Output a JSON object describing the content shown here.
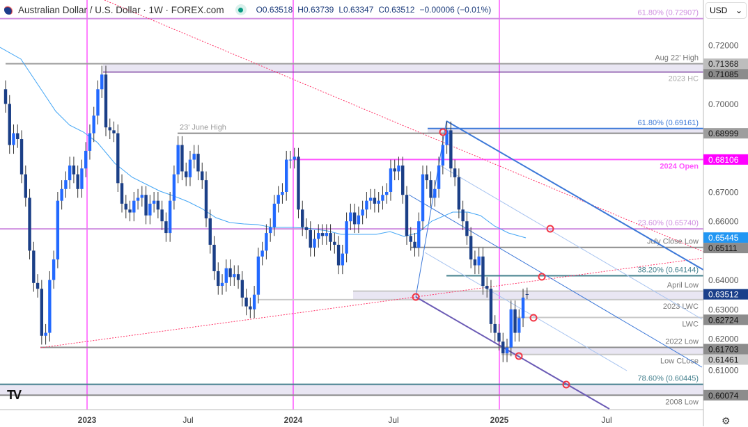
{
  "header": {
    "title": "Australian Dollar / U.S. Dollar · 1W · FOREX.com",
    "open": "O0.63518",
    "high": "H0.63739",
    "low": "L0.63347",
    "close": "C0.63512",
    "change": "−0.00006 (−0.01%)",
    "status_color": "#089981"
  },
  "currency_select": {
    "value": "USD"
  },
  "colors": {
    "up": "#2269ff",
    "down": "#1b3f87",
    "ma": "#42a5f5",
    "magenta": "#ff00ff",
    "fib": "#cf8fe0",
    "teal": "#45818e",
    "channel": "#3c78d8",
    "marker": "#f23645"
  },
  "chart_data": {
    "type": "candlestick",
    "timeframe": "1W",
    "symbol": "AUD/USD",
    "ylim": [
      0.596,
      0.735
    ],
    "x_ticks": [
      "2023",
      "Jul",
      "2024",
      "Jul",
      "2025",
      "Jul"
    ],
    "y_ticks": [
      "0.72000",
      "0.70000",
      "0.67000",
      "0.66000",
      "0.64000",
      "0.63000",
      "0.62000",
      "0.61000"
    ],
    "closes": [
      0.7,
      0.686,
      0.69,
      0.688,
      0.676,
      0.668,
      0.65,
      0.639,
      0.637,
      0.621,
      0.622,
      0.64,
      0.647,
      0.667,
      0.671,
      0.674,
      0.679,
      0.676,
      0.671,
      0.678,
      0.684,
      0.69,
      0.696,
      0.705,
      0.71,
      0.692,
      0.691,
      0.69,
      0.673,
      0.666,
      0.664,
      0.663,
      0.667,
      0.668,
      0.669,
      0.662,
      0.666,
      0.667,
      0.664,
      0.66,
      0.656,
      0.667,
      0.676,
      0.686,
      0.677,
      0.675,
      0.681,
      0.683,
      0.677,
      0.674,
      0.661,
      0.652,
      0.643,
      0.638,
      0.639,
      0.644,
      0.641,
      0.642,
      0.64,
      0.634,
      0.631,
      0.63,
      0.635,
      0.648,
      0.65,
      0.656,
      0.658,
      0.666,
      0.669,
      0.67,
      0.681,
      0.681,
      0.682,
      0.664,
      0.658,
      0.657,
      0.651,
      0.654,
      0.656,
      0.655,
      0.656,
      0.653,
      0.652,
      0.645,
      0.649,
      0.66,
      0.663,
      0.659,
      0.662,
      0.664,
      0.667,
      0.668,
      0.666,
      0.667,
      0.669,
      0.67,
      0.678,
      0.677,
      0.679,
      0.669,
      0.655,
      0.653,
      0.651,
      0.66,
      0.676,
      0.674,
      0.668,
      0.671,
      0.679,
      0.686,
      0.691,
      0.678,
      0.675,
      0.664,
      0.66,
      0.655,
      0.647,
      0.645,
      0.648,
      0.638,
      0.637,
      0.625,
      0.622,
      0.619,
      0.615,
      0.617,
      0.63,
      0.622,
      0.627,
      0.634,
      0.63512
    ],
    "last_bar": {
      "open": 0.63518,
      "high": 0.63739,
      "low": 0.63347,
      "close": 0.63512
    },
    "levels": [
      {
        "price": 0.72907,
        "label": "61.80% (0.72907)",
        "color": "#cf8fe0"
      },
      {
        "price": 0.71368,
        "label": "Aug 22' High",
        "color": "#9e9e9e"
      },
      {
        "price": 0.71085,
        "label": "2023 HC",
        "color": "#7b3fa0"
      },
      {
        "price": 0.69161,
        "label": "61.80% (0.69161)",
        "color": "#3c78d8"
      },
      {
        "price": 0.68999,
        "label": "23' June High",
        "color": "#8c8c8c"
      },
      {
        "price": 0.68106,
        "label": "2024 Open",
        "color": "#ff55ff"
      },
      {
        "price": 0.6574,
        "label": "23.60% (0.65740)",
        "color": "#cf8fe0"
      },
      {
        "price": 0.65111,
        "label": "July Close Low",
        "color": "#8c8c8c"
      },
      {
        "price": 0.64144,
        "label": "38.20% (0.64144)",
        "color": "#45818e"
      },
      {
        "price": 0.6362,
        "label": "April Low",
        "color": "#c8c8c8"
      },
      {
        "price": 0.6333,
        "label": "2023 LWC",
        "color": "#c8c8c8"
      },
      {
        "price": 0.62724,
        "label": "LWC",
        "color": "#c8c8c8"
      },
      {
        "price": 0.61703,
        "label": "2022 Low",
        "color": "#8c8c8c"
      },
      {
        "price": 0.61461,
        "label": "Low CLose",
        "color": "#c8c8c8"
      },
      {
        "price": 0.60445,
        "label": "78.60% (0.60445)",
        "color": "#45818e"
      },
      {
        "price": 0.60074,
        "label": "2008 Low",
        "color": "#8c8c8c"
      }
    ],
    "axis_labels": [
      {
        "text": "0.71368",
        "price": 0.71368,
        "bg": "#bdbdbd",
        "fg": "#222"
      },
      {
        "text": "0.71085",
        "price": 0.71085,
        "bg": "#8c8c8c",
        "fg": "#111"
      },
      {
        "text": "0.68999",
        "price": 0.68999,
        "bg": "#9e9e9e",
        "fg": "#111"
      },
      {
        "text": "0.68106",
        "price": 0.68106,
        "bg": "#ff00ff",
        "fg": "#fff"
      },
      {
        "text": "0.65445",
        "price": 0.65445,
        "bg": "#2196f3",
        "fg": "#fff"
      },
      {
        "text": "0.65111",
        "price": 0.65111,
        "bg": "#8c8c8c",
        "fg": "#111"
      },
      {
        "text": "0.62724",
        "price": 0.62724,
        "bg": "#8c8c8c",
        "fg": "#111"
      },
      {
        "text": "0.61703",
        "price": 0.61703,
        "bg": "#8c8c8c",
        "fg": "#111"
      },
      {
        "text": "0.61461",
        "price": 0.61461,
        "bg": "#cccccc",
        "fg": "#111"
      },
      {
        "text": "0.63512",
        "price": 0.63512,
        "bg": "#1a3f8a",
        "fg": "#fff"
      },
      {
        "text": "0.60074",
        "price": 0.60074,
        "bg": "#8c8c8c",
        "fg": "#111"
      }
    ]
  }
}
